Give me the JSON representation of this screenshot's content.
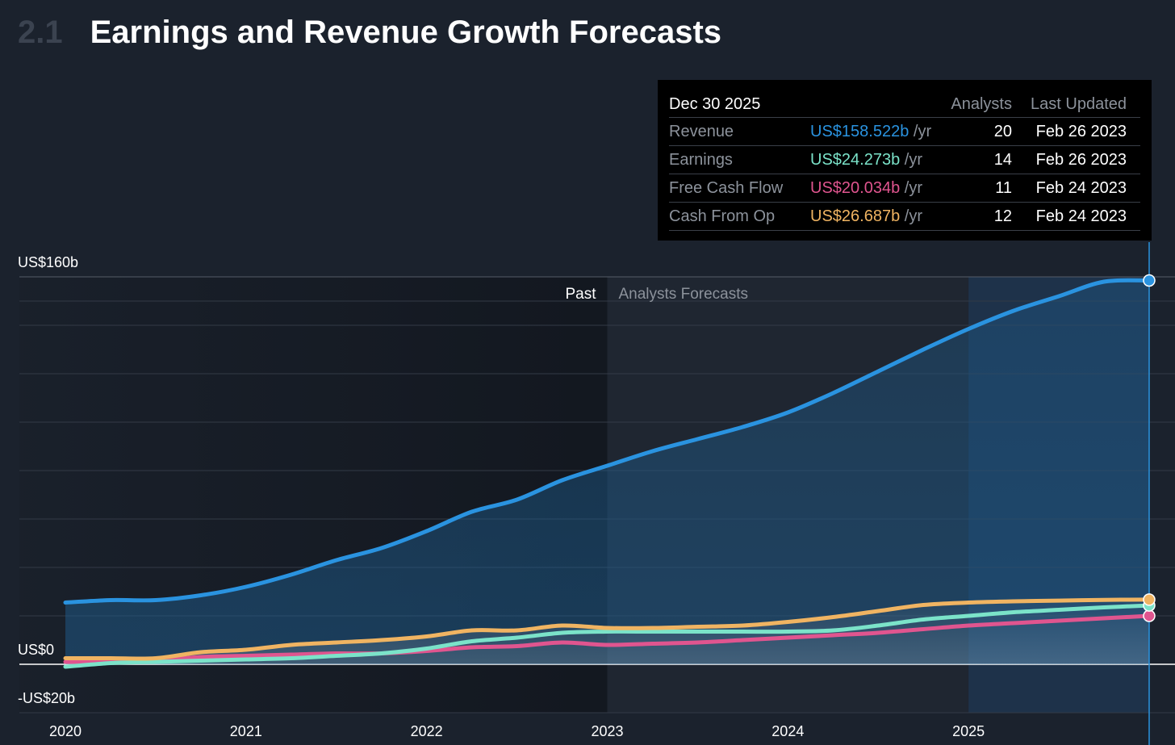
{
  "header": {
    "section_number": "2.1",
    "title": "Earnings and Revenue Growth Forecasts"
  },
  "tooltip": {
    "date": "Dec 30 2025",
    "col_analysts": "Analysts",
    "col_updated": "Last Updated",
    "rows": [
      {
        "label": "Revenue",
        "value": "US$158.522b",
        "unit": "/yr",
        "analysts": "20",
        "updated": "Feb 26 2023",
        "color": "#2a93e0"
      },
      {
        "label": "Earnings",
        "value": "US$24.273b",
        "unit": "/yr",
        "analysts": "14",
        "updated": "Feb 26 2023",
        "color": "#7be3c9"
      },
      {
        "label": "Free Cash Flow",
        "value": "US$20.034b",
        "unit": "/yr",
        "analysts": "11",
        "updated": "Feb 24 2023",
        "color": "#e0558f"
      },
      {
        "label": "Cash From Op",
        "value": "US$26.687b",
        "unit": "/yr",
        "analysts": "12",
        "updated": "Feb 24 2023",
        "color": "#f0b462"
      }
    ]
  },
  "chart_data": {
    "type": "line",
    "y_tick_labels": [
      "US$160b",
      "US$0",
      "-US$20b"
    ],
    "ylim": [
      -20,
      160
    ],
    "x_tick_labels": [
      "2020",
      "2021",
      "2022",
      "2023",
      "2024",
      "2025"
    ],
    "xlim": [
      2020.0,
      2026.0
    ],
    "past_label": "Past",
    "forecast_label": "Analysts Forecasts",
    "forecast_start": 2023.0,
    "highlight_start": 2025.0,
    "cursor_x": 2026.0,
    "grid": true,
    "legend": "none",
    "series": [
      {
        "name": "Revenue",
        "color": "#2a93e0",
        "points": [
          [
            2020.0,
            25.5
          ],
          [
            2020.25,
            26.5
          ],
          [
            2020.5,
            26.5
          ],
          [
            2020.75,
            28.5
          ],
          [
            2021.0,
            32
          ],
          [
            2021.25,
            37
          ],
          [
            2021.5,
            43
          ],
          [
            2021.75,
            48
          ],
          [
            2022.0,
            55
          ],
          [
            2022.25,
            63
          ],
          [
            2022.5,
            68
          ],
          [
            2022.75,
            76
          ],
          [
            2023.0,
            82
          ],
          [
            2023.25,
            88
          ],
          [
            2023.5,
            93
          ],
          [
            2023.75,
            98
          ],
          [
            2024.0,
            104
          ],
          [
            2024.25,
            112
          ],
          [
            2024.5,
            121
          ],
          [
            2024.75,
            130
          ],
          [
            2025.0,
            138.5
          ],
          [
            2025.25,
            146
          ],
          [
            2025.5,
            152
          ],
          [
            2025.75,
            158
          ],
          [
            2026.0,
            158.5
          ]
        ]
      },
      {
        "name": "Earnings",
        "color": "#7be3c9",
        "points": [
          [
            2020.0,
            -1
          ],
          [
            2020.25,
            0.5
          ],
          [
            2020.5,
            1
          ],
          [
            2020.75,
            1.5
          ],
          [
            2021.0,
            2
          ],
          [
            2021.25,
            2.5
          ],
          [
            2021.5,
            3.5
          ],
          [
            2021.75,
            4.5
          ],
          [
            2022.0,
            6.5
          ],
          [
            2022.25,
            9.5
          ],
          [
            2022.5,
            11
          ],
          [
            2022.75,
            13
          ],
          [
            2023.0,
            13.5
          ],
          [
            2023.25,
            13.5
          ],
          [
            2023.5,
            13.5
          ],
          [
            2023.75,
            13.5
          ],
          [
            2024.0,
            13.5
          ],
          [
            2024.25,
            14
          ],
          [
            2024.5,
            16
          ],
          [
            2024.75,
            18.5
          ],
          [
            2025.0,
            20
          ],
          [
            2025.25,
            21.5
          ],
          [
            2025.5,
            22.5
          ],
          [
            2025.75,
            23.5
          ],
          [
            2026.0,
            24.3
          ]
        ]
      },
      {
        "name": "Free Cash Flow",
        "color": "#e0558f",
        "points": [
          [
            2020.0,
            1
          ],
          [
            2020.25,
            1
          ],
          [
            2020.5,
            1.5
          ],
          [
            2020.75,
            3
          ],
          [
            2021.0,
            3.5
          ],
          [
            2021.25,
            4
          ],
          [
            2021.5,
            4.5
          ],
          [
            2021.75,
            4.5
          ],
          [
            2022.0,
            5.5
          ],
          [
            2022.25,
            7
          ],
          [
            2022.5,
            7.5
          ],
          [
            2022.75,
            9
          ],
          [
            2023.0,
            8
          ],
          [
            2023.25,
            8.5
          ],
          [
            2023.5,
            9
          ],
          [
            2023.75,
            10
          ],
          [
            2024.0,
            11
          ],
          [
            2024.25,
            12
          ],
          [
            2024.5,
            13
          ],
          [
            2024.75,
            14.5
          ],
          [
            2025.0,
            16
          ],
          [
            2025.25,
            17
          ],
          [
            2025.5,
            18
          ],
          [
            2025.75,
            19
          ],
          [
            2026.0,
            20
          ]
        ]
      },
      {
        "name": "Cash From Op",
        "color": "#f0b462",
        "points": [
          [
            2020.0,
            2.5
          ],
          [
            2020.25,
            2.5
          ],
          [
            2020.5,
            2.5
          ],
          [
            2020.75,
            5
          ],
          [
            2021.0,
            6
          ],
          [
            2021.25,
            8
          ],
          [
            2021.5,
            9
          ],
          [
            2021.75,
            10
          ],
          [
            2022.0,
            11.5
          ],
          [
            2022.25,
            14
          ],
          [
            2022.5,
            14
          ],
          [
            2022.75,
            16
          ],
          [
            2023.0,
            15
          ],
          [
            2023.25,
            15
          ],
          [
            2023.5,
            15.5
          ],
          [
            2023.75,
            16
          ],
          [
            2024.0,
            17.5
          ],
          [
            2024.25,
            19.5
          ],
          [
            2024.5,
            22
          ],
          [
            2024.75,
            24.5
          ],
          [
            2025.0,
            25.5
          ],
          [
            2025.25,
            26
          ],
          [
            2025.5,
            26.3
          ],
          [
            2025.75,
            26.6
          ],
          [
            2026.0,
            26.7
          ]
        ]
      }
    ]
  }
}
